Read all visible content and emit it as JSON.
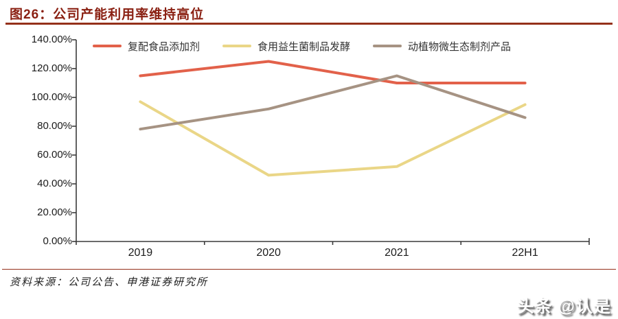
{
  "header": {
    "title": "图26：公司产能利用率维持高位"
  },
  "footer": {
    "source": "资料来源：公司公告、申港证券研究所",
    "watermark": "头条 @认是"
  },
  "colors": {
    "accent": "#94301A",
    "title_text": "#8A2012",
    "axis": "#3A3A3A"
  },
  "chart_data": {
    "type": "line",
    "title": "公司产能利用率维持高位",
    "unit": "percent",
    "categories": [
      "2019",
      "2020",
      "2021",
      "22H1"
    ],
    "series": [
      {
        "name": "复配食品添加剂",
        "color": "#E2614A",
        "values": [
          115,
          125,
          110,
          110
        ]
      },
      {
        "name": "食用益生菌制品发酵",
        "color": "#EAD687",
        "values": [
          97,
          46,
          52,
          95
        ]
      },
      {
        "name": "动植物微生态制剂产品",
        "color": "#A69383",
        "values": [
          78,
          92,
          115,
          86
        ]
      }
    ],
    "xlabel": "",
    "ylabel": "",
    "ylim": [
      0,
      140
    ],
    "ytick_step": 20,
    "yticks": [
      "0.00%",
      "20.00%",
      "40.00%",
      "60.00%",
      "80.00%",
      "100.00%",
      "120.00%",
      "140.00%"
    ],
    "legend_position": "top",
    "grid": false
  }
}
